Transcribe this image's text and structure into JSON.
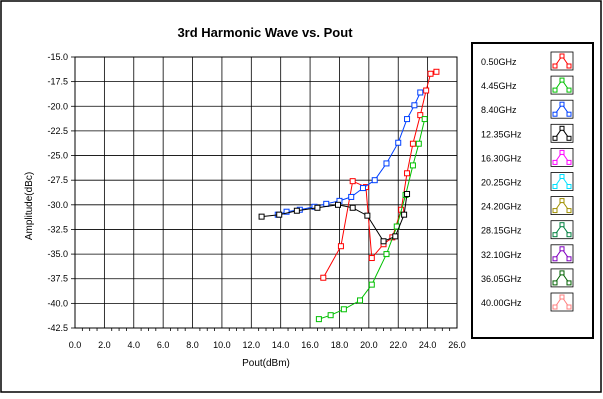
{
  "chart_data": {
    "type": "line",
    "title": "3rd Harmonic Wave vs. Pout",
    "xlabel": "Pout(dBm)",
    "ylabel": "Amplitude(dBc)",
    "xlim": [
      0,
      26
    ],
    "ylim": [
      -42.5,
      -15
    ],
    "xticks": [
      "0.0",
      "2.0",
      "4.0",
      "6.0",
      "8.0",
      "10.0",
      "12.0",
      "14.0",
      "16.0",
      "18.0",
      "20.0",
      "22.0",
      "24.0",
      "26.0"
    ],
    "yticks": [
      "-15.0",
      "-17.5",
      "-20.0",
      "-22.5",
      "-25.0",
      "-27.5",
      "-30.0",
      "-32.5",
      "-35.0",
      "-37.5",
      "-40.0",
      "-42.5"
    ],
    "grid": true,
    "legend_position": "right",
    "series": [
      {
        "name": "0.50GHz",
        "color": "#ff0000",
        "x": [
          16.9,
          18.1,
          18.9,
          19.8,
          20.2,
          21.0,
          21.6,
          22.2,
          22.6,
          23.0,
          23.5,
          23.9,
          24.2,
          24.6
        ],
        "y": [
          -37.4,
          -34.2,
          -27.6,
          -28.2,
          -35.4,
          -34.0,
          -33.3,
          -30.5,
          -26.8,
          -23.8,
          -20.9,
          -18.4,
          -16.7,
          -16.5
        ]
      },
      {
        "name": "4.45GHz",
        "color": "#00c000",
        "x": [
          16.6,
          17.4,
          18.3,
          19.4,
          20.2,
          21.2,
          21.9,
          22.5,
          23.0,
          23.4,
          23.8
        ],
        "y": [
          -41.6,
          -41.2,
          -40.6,
          -39.7,
          -38.1,
          -35.0,
          -32.2,
          -29.0,
          -26.0,
          -23.8,
          -21.3
        ]
      },
      {
        "name": "8.40GHz",
        "color": "#0040ff",
        "x": [
          13.8,
          14.4,
          15.3,
          16.3,
          17.1,
          18.0,
          18.8,
          19.6,
          20.4,
          21.2,
          22.0,
          22.6,
          23.1,
          23.5
        ],
        "y": [
          -31.0,
          -30.7,
          -30.5,
          -30.2,
          -29.9,
          -29.6,
          -29.2,
          -28.3,
          -27.5,
          -25.8,
          -23.7,
          -21.3,
          -19.9,
          -18.6
        ]
      },
      {
        "name": "12.35GHz",
        "color": "#000000",
        "x": [
          12.7,
          13.9,
          15.1,
          16.5,
          17.9,
          18.9,
          19.9,
          21.0,
          21.8,
          22.4,
          22.6
        ],
        "y": [
          -31.2,
          -31.0,
          -30.6,
          -30.3,
          -30.0,
          -30.3,
          -31.1,
          -33.7,
          -33.2,
          -31.0,
          -28.9
        ]
      },
      {
        "name": "16.30GHz",
        "color": "#ff00ff",
        "x": [],
        "y": []
      },
      {
        "name": "20.25GHz",
        "color": "#00e0ff",
        "x": [],
        "y": []
      },
      {
        "name": "24.20GHz",
        "color": "#a09000",
        "x": [],
        "y": []
      },
      {
        "name": "28.15GHz",
        "color": "#008040",
        "x": [],
        "y": []
      },
      {
        "name": "32.10GHz",
        "color": "#8000c0",
        "x": [],
        "y": []
      },
      {
        "name": "36.05GHz",
        "color": "#006000",
        "x": [],
        "y": []
      },
      {
        "name": "40.00GHz",
        "color": "#ff8080",
        "x": [],
        "y": []
      }
    ]
  }
}
